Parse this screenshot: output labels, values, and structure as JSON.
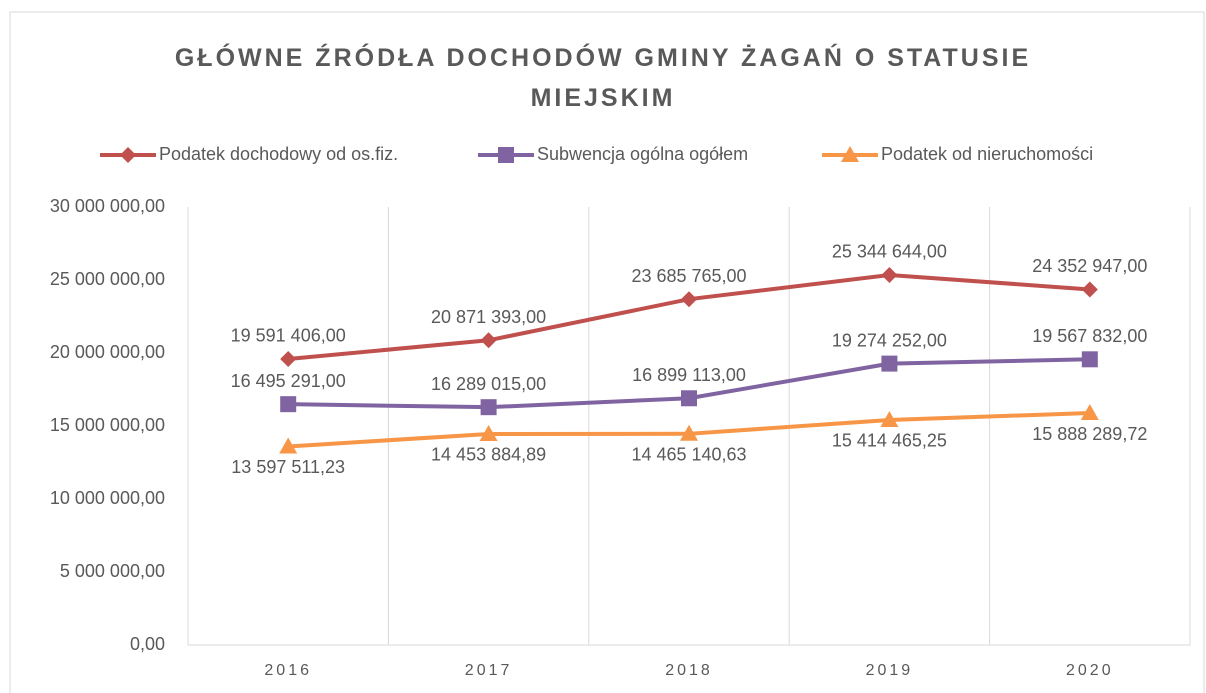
{
  "chart_data": {
    "type": "line",
    "title": "GŁÓWNE ŹRÓDŁA DOCHODÓW GMINY ŻAGAŃ O STATUSIE MIEJSKIM",
    "categories": [
      "2016",
      "2017",
      "2018",
      "2019",
      "2020"
    ],
    "series": [
      {
        "name": "Podatek dochodowy od os.fiz.",
        "color": "#c0504d",
        "marker": "diamond",
        "values": [
          19591406,
          20871393,
          23685765,
          25344644,
          24352947
        ],
        "value_labels": [
          "19 591 406,00",
          "20 871 393,00",
          "23 685 765,00",
          "25 344 644,00",
          "24 352 947,00"
        ]
      },
      {
        "name": "Subwencja ogólna ogółem",
        "color": "#8064a2",
        "marker": "square",
        "values": [
          16495291,
          16289015,
          16899113,
          19274252,
          19567832
        ],
        "value_labels": [
          "16 495 291,00",
          "16 289 015,00",
          "16 899 113,00",
          "19 274 252,00",
          "19 567 832,00"
        ]
      },
      {
        "name": "Podatek od nieruchomości",
        "color": "#f79646",
        "marker": "triangle",
        "values": [
          13597511.23,
          14453884.89,
          14465140.63,
          15414465.25,
          15888289.72
        ],
        "value_labels": [
          "13 597 511,23",
          "14 453 884,89",
          "14 465 140,63",
          "15 414 465,25",
          "15 888 289,72"
        ]
      }
    ],
    "ylim": [
      0,
      30000000
    ],
    "yticks": [
      {
        "value": 0,
        "label": "0,00"
      },
      {
        "value": 5000000,
        "label": "5 000 000,00"
      },
      {
        "value": 10000000,
        "label": "10 000 000,00"
      },
      {
        "value": 15000000,
        "label": "15 000 000,00"
      },
      {
        "value": 20000000,
        "label": "20 000 000,00"
      },
      {
        "value": 25000000,
        "label": "25 000 000,00"
      },
      {
        "value": 30000000,
        "label": "30 000 000,00"
      }
    ],
    "legend": "top"
  }
}
